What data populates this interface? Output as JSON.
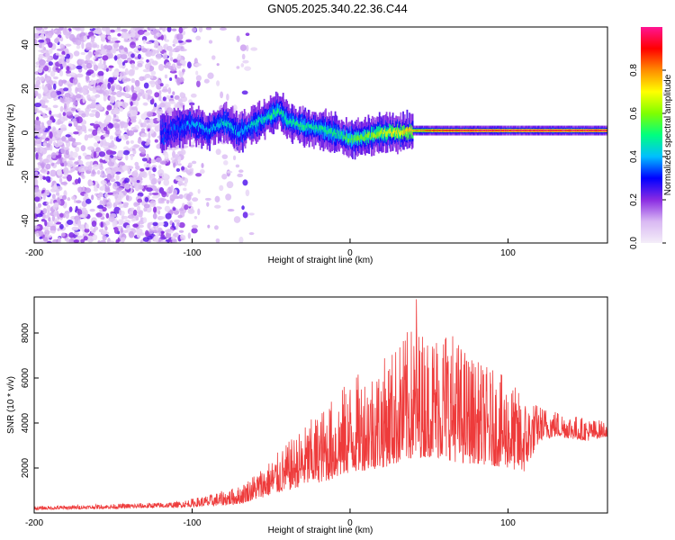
{
  "title": "GN05.2025.340.22.36.C44",
  "colors": {
    "snr_line": "#ee3b3b",
    "colorbar_stops": [
      "#f4eef9",
      "#d9b8f3",
      "#8a2be2",
      "#0000ff",
      "#00bfff",
      "#00ff7f",
      "#7fff00",
      "#ffff00",
      "#ff8c00",
      "#ff0000",
      "#ff1493"
    ]
  },
  "chart_data": [
    {
      "type": "heatmap",
      "name": "spectrogram",
      "xlabel": "Height of straight line (km)",
      "ylabel": "Frequency (Hz)",
      "xlim": [
        -200,
        163
      ],
      "ylim": [
        -50,
        48
      ],
      "xticks": [
        -200,
        -100,
        0,
        100
      ],
      "xtick_labels": [
        "-200",
        "-100",
        "0",
        "100"
      ],
      "yticks": [
        -40,
        -20,
        0,
        20,
        40
      ],
      "ytick_labels": [
        "-40",
        "-20",
        "0",
        "20",
        "40"
      ],
      "colorbar": {
        "label": "Normalized spectral amplitude",
        "range": [
          0,
          1
        ],
        "ticks": [
          0.0,
          0.2,
          0.4,
          0.6,
          0.8
        ],
        "tick_labels": [
          "0.0",
          "0.2",
          "0.4",
          "0.6",
          "0.8"
        ]
      },
      "ridge": {
        "x": [
          -120,
          -110,
          -100,
          -90,
          -80,
          -70,
          -60,
          -50,
          -45,
          -40,
          -30,
          -20,
          -10,
          0,
          10,
          20,
          30,
          40,
          50,
          60,
          80,
          100,
          120,
          163
        ],
        "freq": [
          0,
          2,
          4,
          1,
          5,
          0,
          4,
          8,
          10,
          6,
          3,
          2,
          0,
          -3,
          -2,
          0,
          0,
          1,
          1,
          1,
          1,
          1,
          1,
          1
        ],
        "peak_amplitude": [
          0.3,
          0.35,
          0.4,
          0.4,
          0.45,
          0.4,
          0.45,
          0.5,
          0.5,
          0.5,
          0.5,
          0.5,
          0.5,
          0.55,
          0.6,
          0.65,
          0.7,
          0.75,
          0.85,
          0.9,
          0.95,
          0.95,
          0.95,
          0.95
        ]
      },
      "noise_region_x": [
        -200,
        -60
      ]
    },
    {
      "type": "line",
      "name": "snr",
      "xlabel": "Height of straight line (km)",
      "ylabel": "SNR (10 * v/v)",
      "xlim": [
        -200,
        163
      ],
      "ylim": [
        0,
        9600
      ],
      "xticks": [
        -200,
        -100,
        0,
        100
      ],
      "xtick_labels": [
        "-200",
        "-100",
        "0",
        "100"
      ],
      "yticks": [
        2000,
        4000,
        6000,
        8000
      ],
      "ytick_labels": [
        "2000",
        "4000",
        "6000",
        "8000"
      ],
      "series": [
        {
          "name": "SNR",
          "envelope_x": [
            -200,
            -150,
            -110,
            -90,
            -70,
            -50,
            -30,
            -10,
            0,
            20,
            30,
            40,
            50,
            60,
            70,
            80,
            100,
            110,
            120,
            130,
            140,
            150,
            163
          ],
          "envelope_base": [
            150,
            200,
            250,
            300,
            400,
            800,
            1200,
            1500,
            1800,
            2000,
            2200,
            2400,
            2500,
            2400,
            2200,
            2200,
            2000,
            1800,
            3200,
            3400,
            3300,
            3200,
            3400
          ],
          "envelope_peak": [
            300,
            400,
            500,
            800,
            1200,
            2400,
            3800,
            5200,
            6000,
            6800,
            7600,
            8400,
            8000,
            8600,
            7600,
            6800,
            6000,
            5200,
            4800,
            4600,
            4400,
            4200,
            4100
          ],
          "max_value": 9500,
          "max_at_x": 42
        }
      ]
    }
  ]
}
